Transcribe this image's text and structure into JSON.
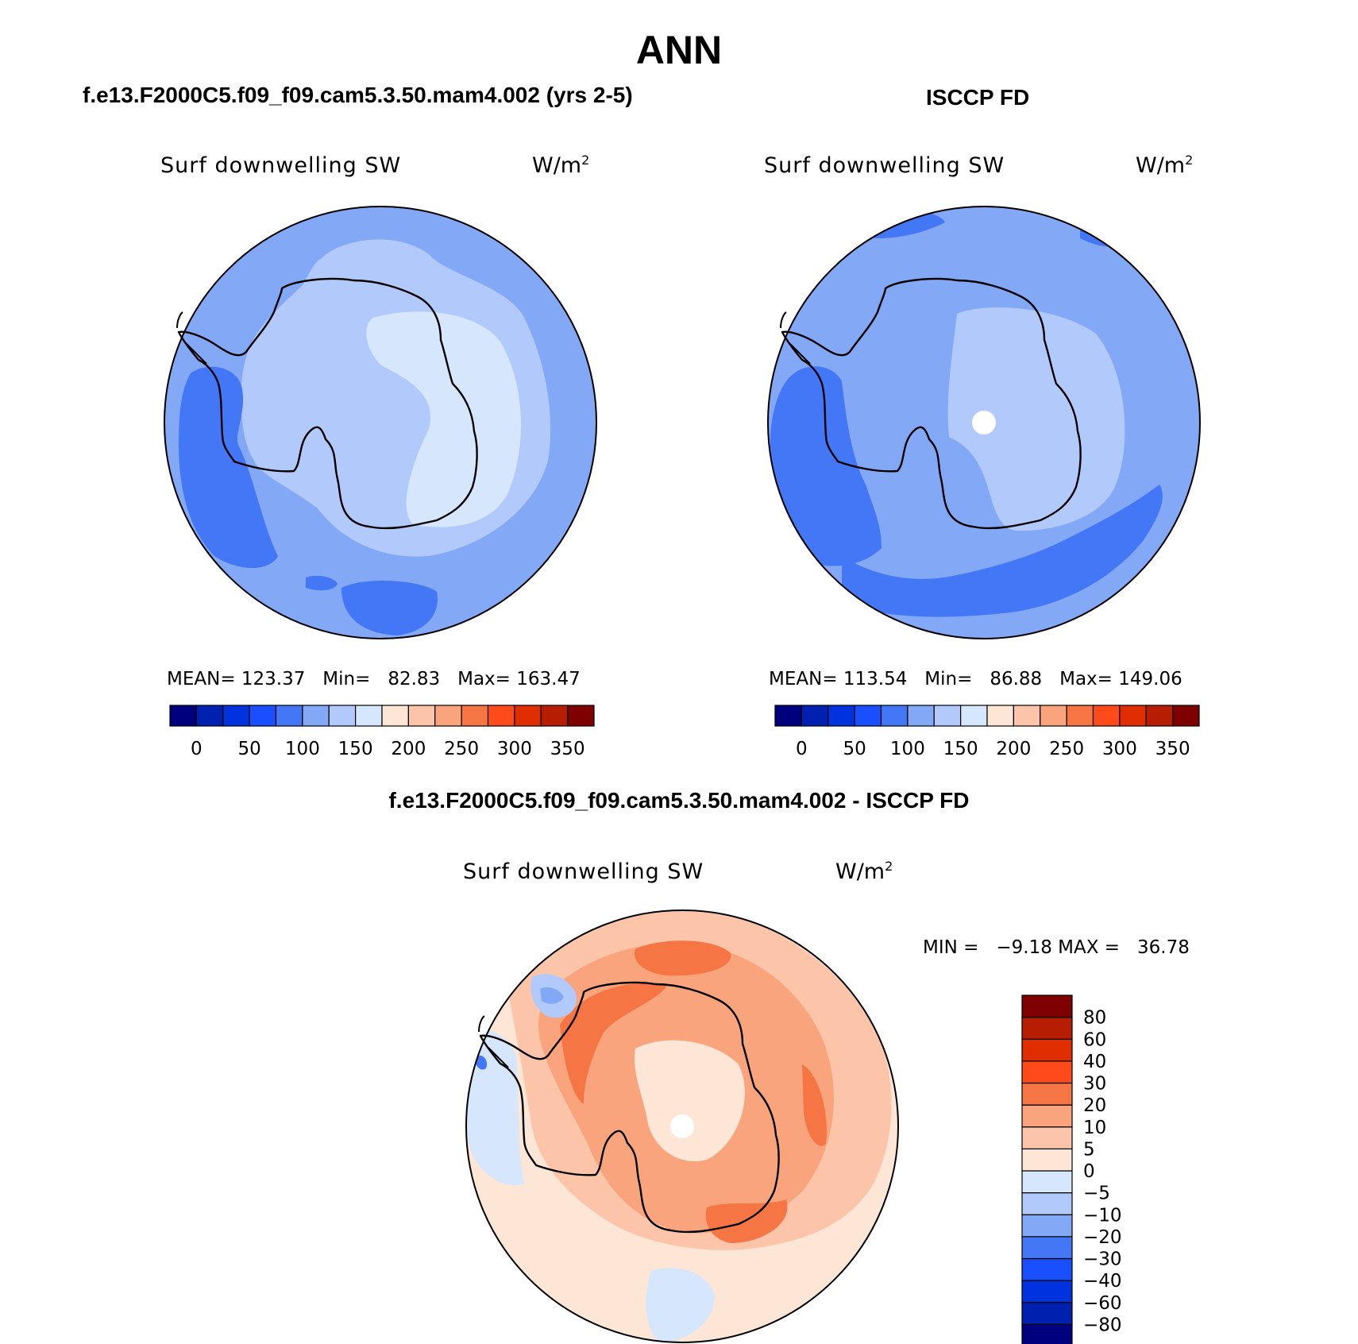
{
  "page_title": "ANN",
  "panels": [
    {
      "id": "model",
      "case_title": "f.e13.F2000C5.f09_f09.cam5.3.50.mam4.002 (yrs 2-5)",
      "variable": "Surf downwelling SW",
      "units": "W/m",
      "units_exp": "2",
      "stats_text": "MEAN= 123.37   Min=   82.83   Max= 163.47",
      "stats": {
        "mean": 123.37,
        "min": 82.83,
        "max": 163.47
      },
      "colorbar_ticks": [
        "0",
        "50",
        "100",
        "150",
        "200",
        "250",
        "300",
        "350"
      ]
    },
    {
      "id": "obs",
      "case_title": "ISCCP FD",
      "variable": "Surf downwelling SW",
      "units": "W/m",
      "units_exp": "2",
      "stats_text": "MEAN= 113.54   Min=   86.88   Max= 149.06",
      "stats": {
        "mean": 113.54,
        "min": 86.88,
        "max": 149.06
      },
      "colorbar_ticks": [
        "0",
        "50",
        "100",
        "150",
        "200",
        "250",
        "300",
        "350"
      ]
    },
    {
      "id": "diff",
      "case_title": "f.e13.F2000C5.f09_f09.cam5.3.50.mam4.002 - ISCCP FD",
      "variable": "Surf downwelling SW",
      "units": "W/m",
      "units_exp": "2",
      "stats_text": "MIN =   −9.18 MAX =   36.78",
      "stats": {
        "min": -9.18,
        "max": 36.78
      },
      "colorbar_ticks": [
        "80",
        "60",
        "40",
        "30",
        "20",
        "10",
        "5",
        "0",
        "−5",
        "−10",
        "−20",
        "−30",
        "−40",
        "−60",
        "−80"
      ]
    }
  ],
  "colors": {
    "abs_scale": [
      "#00007f",
      "#0020b0",
      "#0033dd",
      "#1a4fff",
      "#4477f5",
      "#83a8f6",
      "#b2c9fb",
      "#d6e6fd",
      "#fde6d6",
      "#fcc5aa",
      "#f9a47c",
      "#f57544",
      "#ff4a1a",
      "#e02e00",
      "#b71d03",
      "#7f0000"
    ],
    "diff_scale": [
      "#00007f",
      "#0020b0",
      "#0033dd",
      "#1a4fff",
      "#4477f5",
      "#83a8f6",
      "#b2c9fb",
      "#d6e6fd",
      "#fde6d6",
      "#fcc5aa",
      "#f9a47c",
      "#f57544",
      "#ff4a1a",
      "#e02e00",
      "#b71d03",
      "#7f0000"
    ]
  }
}
